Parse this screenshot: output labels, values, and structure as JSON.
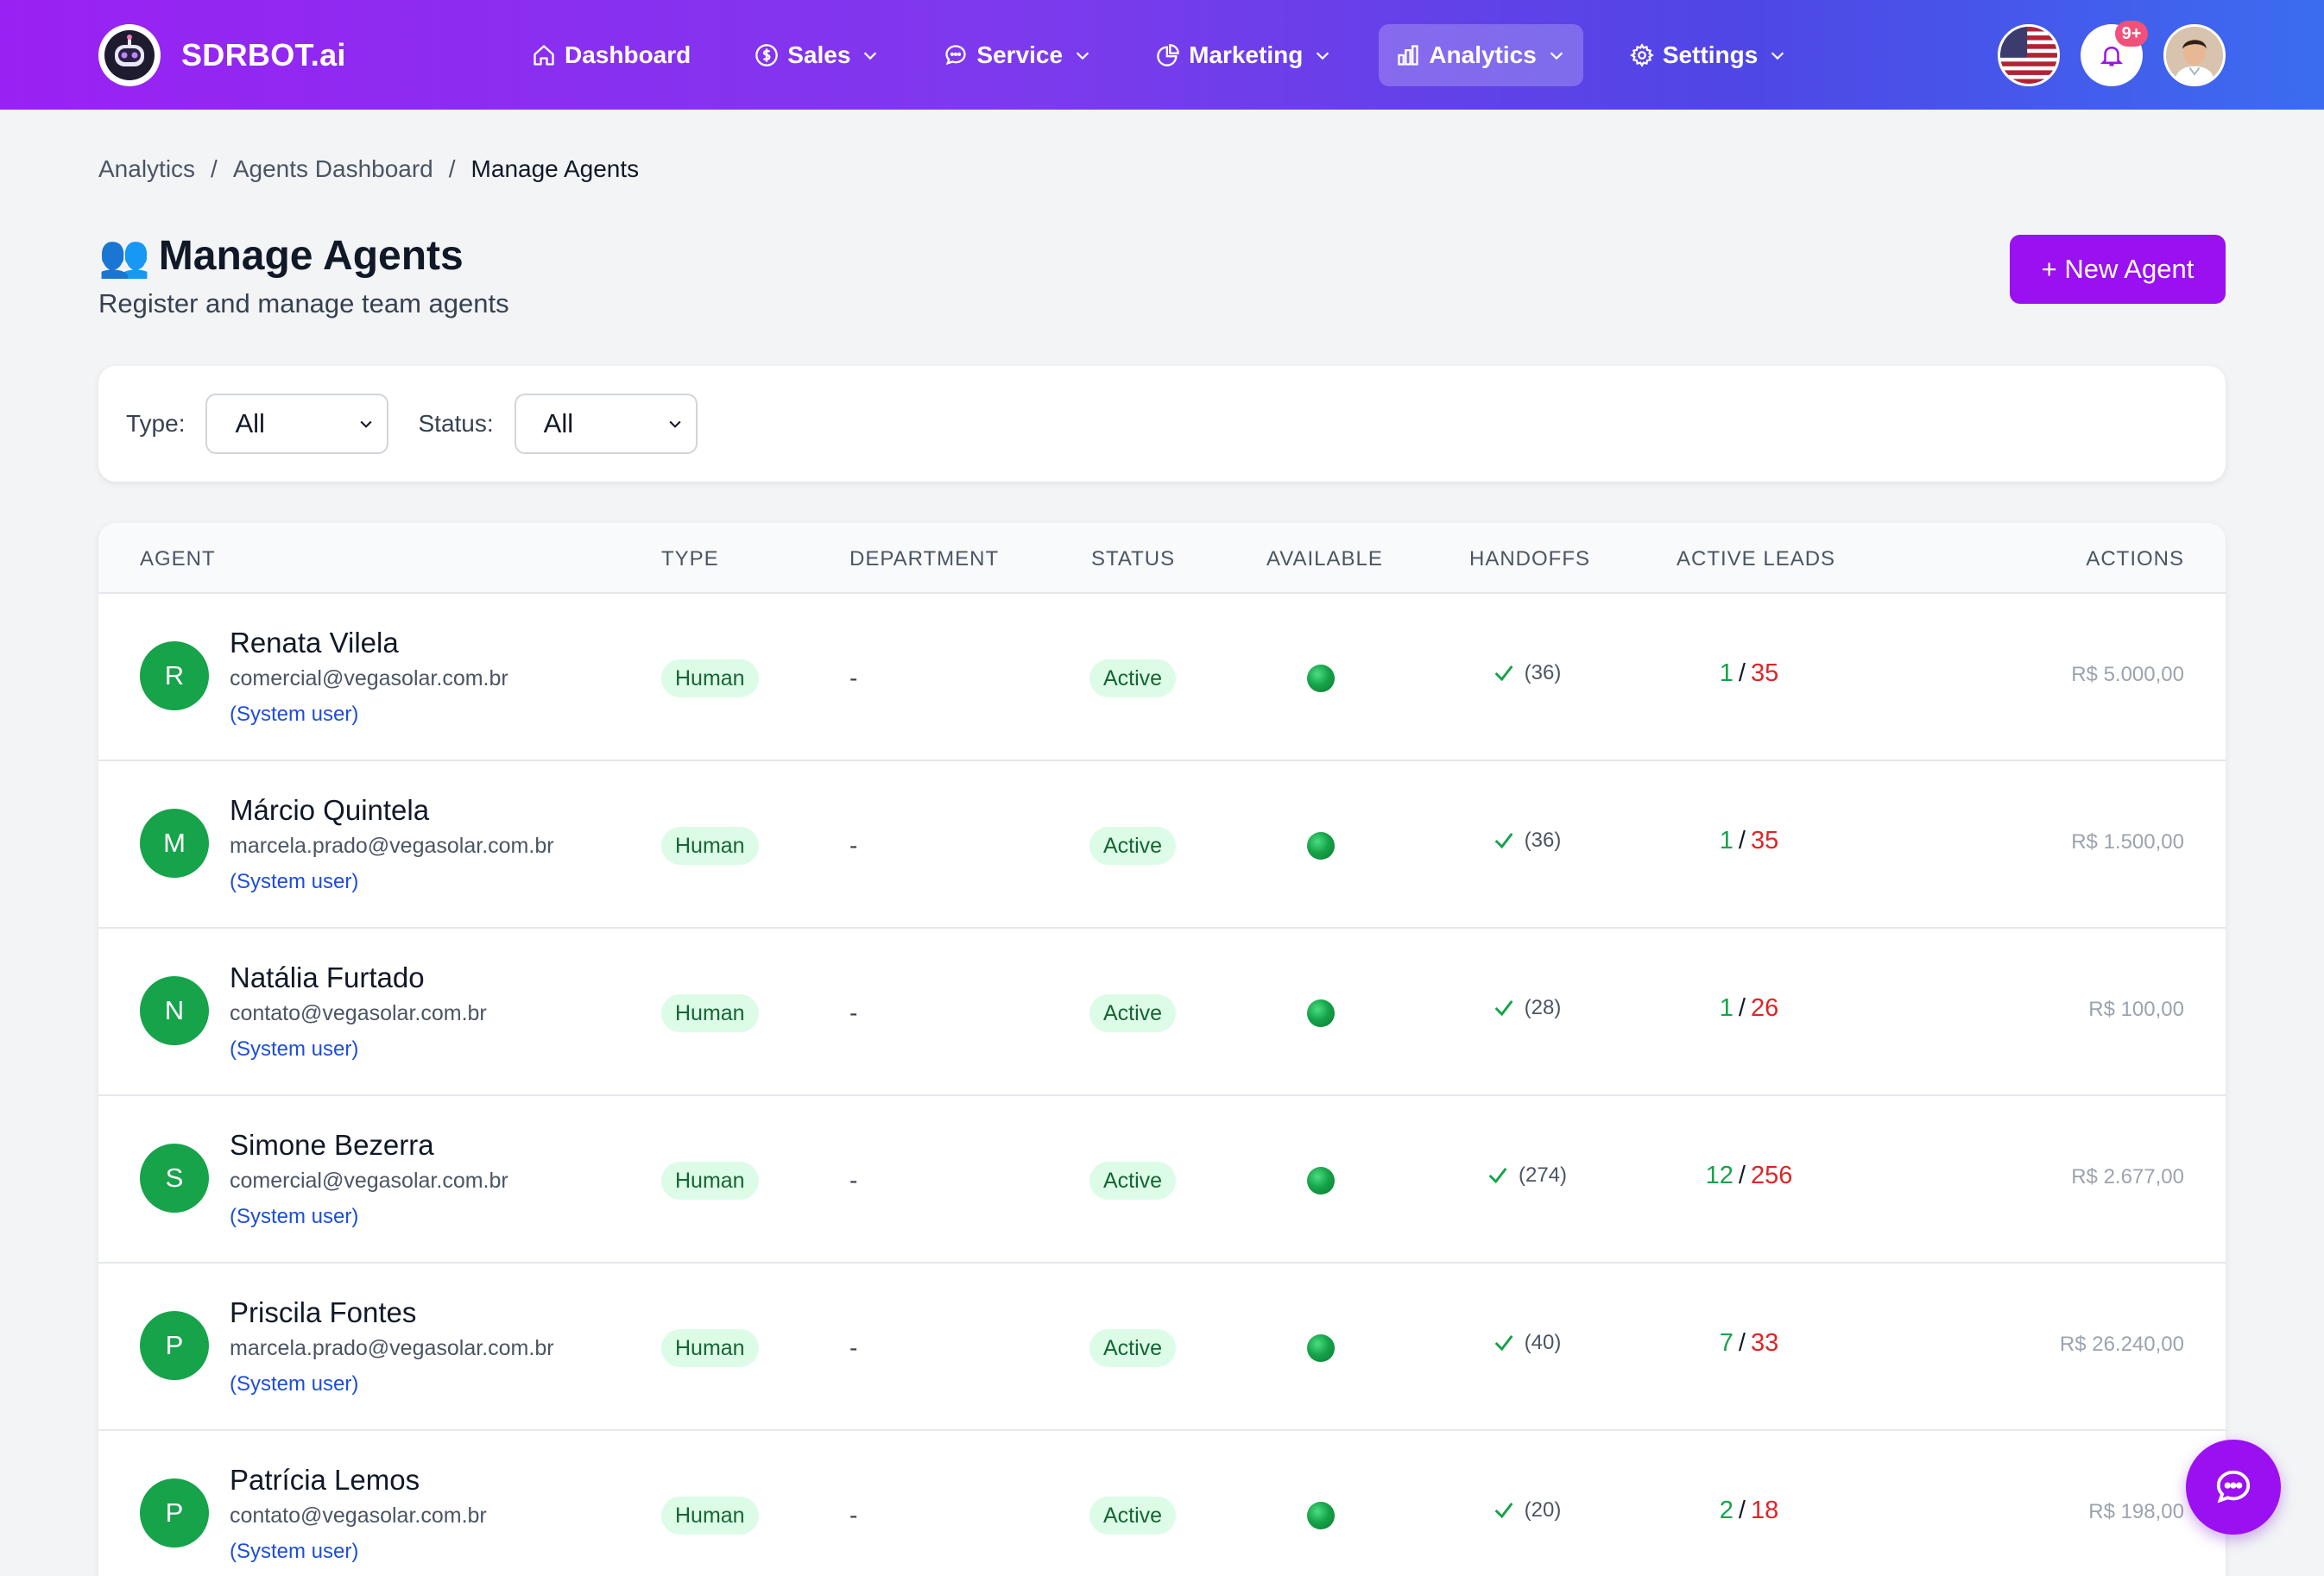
{
  "brand": {
    "name": "SDRBOT.ai"
  },
  "nav": {
    "items": [
      {
        "label": "Dashboard",
        "icon": "home-icon",
        "has_dropdown": false,
        "active": false
      },
      {
        "label": "Sales",
        "icon": "dollar-circle-icon",
        "has_dropdown": true,
        "active": false
      },
      {
        "label": "Service",
        "icon": "chat-bubble-icon",
        "has_dropdown": true,
        "active": false
      },
      {
        "label": "Marketing",
        "icon": "pie-chart-icon",
        "has_dropdown": true,
        "active": false
      },
      {
        "label": "Analytics",
        "icon": "bar-chart-icon",
        "has_dropdown": true,
        "active": true
      },
      {
        "label": "Settings",
        "icon": "gear-icon",
        "has_dropdown": true,
        "active": false
      }
    ],
    "notifications_badge": "9+",
    "language_flag": "us-flag-icon"
  },
  "breadcrumb": {
    "items": [
      "Analytics",
      "Agents Dashboard",
      "Manage Agents"
    ],
    "separator": "/"
  },
  "header": {
    "title": "Manage Agents",
    "title_icon": "👥",
    "subtitle": "Register and manage team agents",
    "new_button": "+ New Agent"
  },
  "filters": {
    "type_label": "Type:",
    "type_value": "All",
    "status_label": "Status:",
    "status_value": "All"
  },
  "table": {
    "columns": [
      "AGENT",
      "TYPE",
      "DEPARTMENT",
      "STATUS",
      "AVAILABLE",
      "HANDOFFS",
      "ACTIVE LEADS",
      "ACTIONS"
    ],
    "rows": [
      {
        "initial": "R",
        "name": "Renata Vilela",
        "email": "comercial@vegasolar.com.br",
        "system": "(System user)",
        "type": "Human",
        "department": "-",
        "status": "Active",
        "available": true,
        "handoffs": "(36)",
        "leads_active": "1",
        "leads_total": "35",
        "amount": "R$ 5.000,00"
      },
      {
        "initial": "M",
        "name": "Márcio Quintela",
        "email": "marcela.prado@vegasolar.com.br",
        "system": "(System user)",
        "type": "Human",
        "department": "-",
        "status": "Active",
        "available": true,
        "handoffs": "(36)",
        "leads_active": "1",
        "leads_total": "35",
        "amount": "R$ 1.500,00"
      },
      {
        "initial": "N",
        "name": "Natália Furtado",
        "email": "contato@vegasolar.com.br",
        "system": "(System user)",
        "type": "Human",
        "department": "-",
        "status": "Active",
        "available": true,
        "handoffs": "(28)",
        "leads_active": "1",
        "leads_total": "26",
        "amount": "R$ 100,00"
      },
      {
        "initial": "S",
        "name": "Simone Bezerra",
        "email": "comercial@vegasolar.com.br",
        "system": "(System user)",
        "type": "Human",
        "department": "-",
        "status": "Active",
        "available": true,
        "handoffs": "(274)",
        "leads_active": "12",
        "leads_total": "256",
        "amount": "R$ 2.677,00"
      },
      {
        "initial": "P",
        "name": "Priscila Fontes",
        "email": "marcela.prado@vegasolar.com.br",
        "system": "(System user)",
        "type": "Human",
        "department": "-",
        "status": "Active",
        "available": true,
        "handoffs": "(40)",
        "leads_active": "7",
        "leads_total": "33",
        "amount": "R$ 26.240,00"
      },
      {
        "initial": "P",
        "name": "Patrícia Lemos",
        "email": "contato@vegasolar.com.br",
        "system": "(System user)",
        "type": "Human",
        "department": "-",
        "status": "Active",
        "available": true,
        "handoffs": "(20)",
        "leads_active": "2",
        "leads_total": "18",
        "amount": "R$ 198,00"
      }
    ]
  },
  "chat_fab": {
    "icon": "chat-icon"
  },
  "colors": {
    "accent": "#9a10f0",
    "positive": "#16a34a",
    "negative": "#dc2626",
    "link": "#1d4ed8"
  }
}
